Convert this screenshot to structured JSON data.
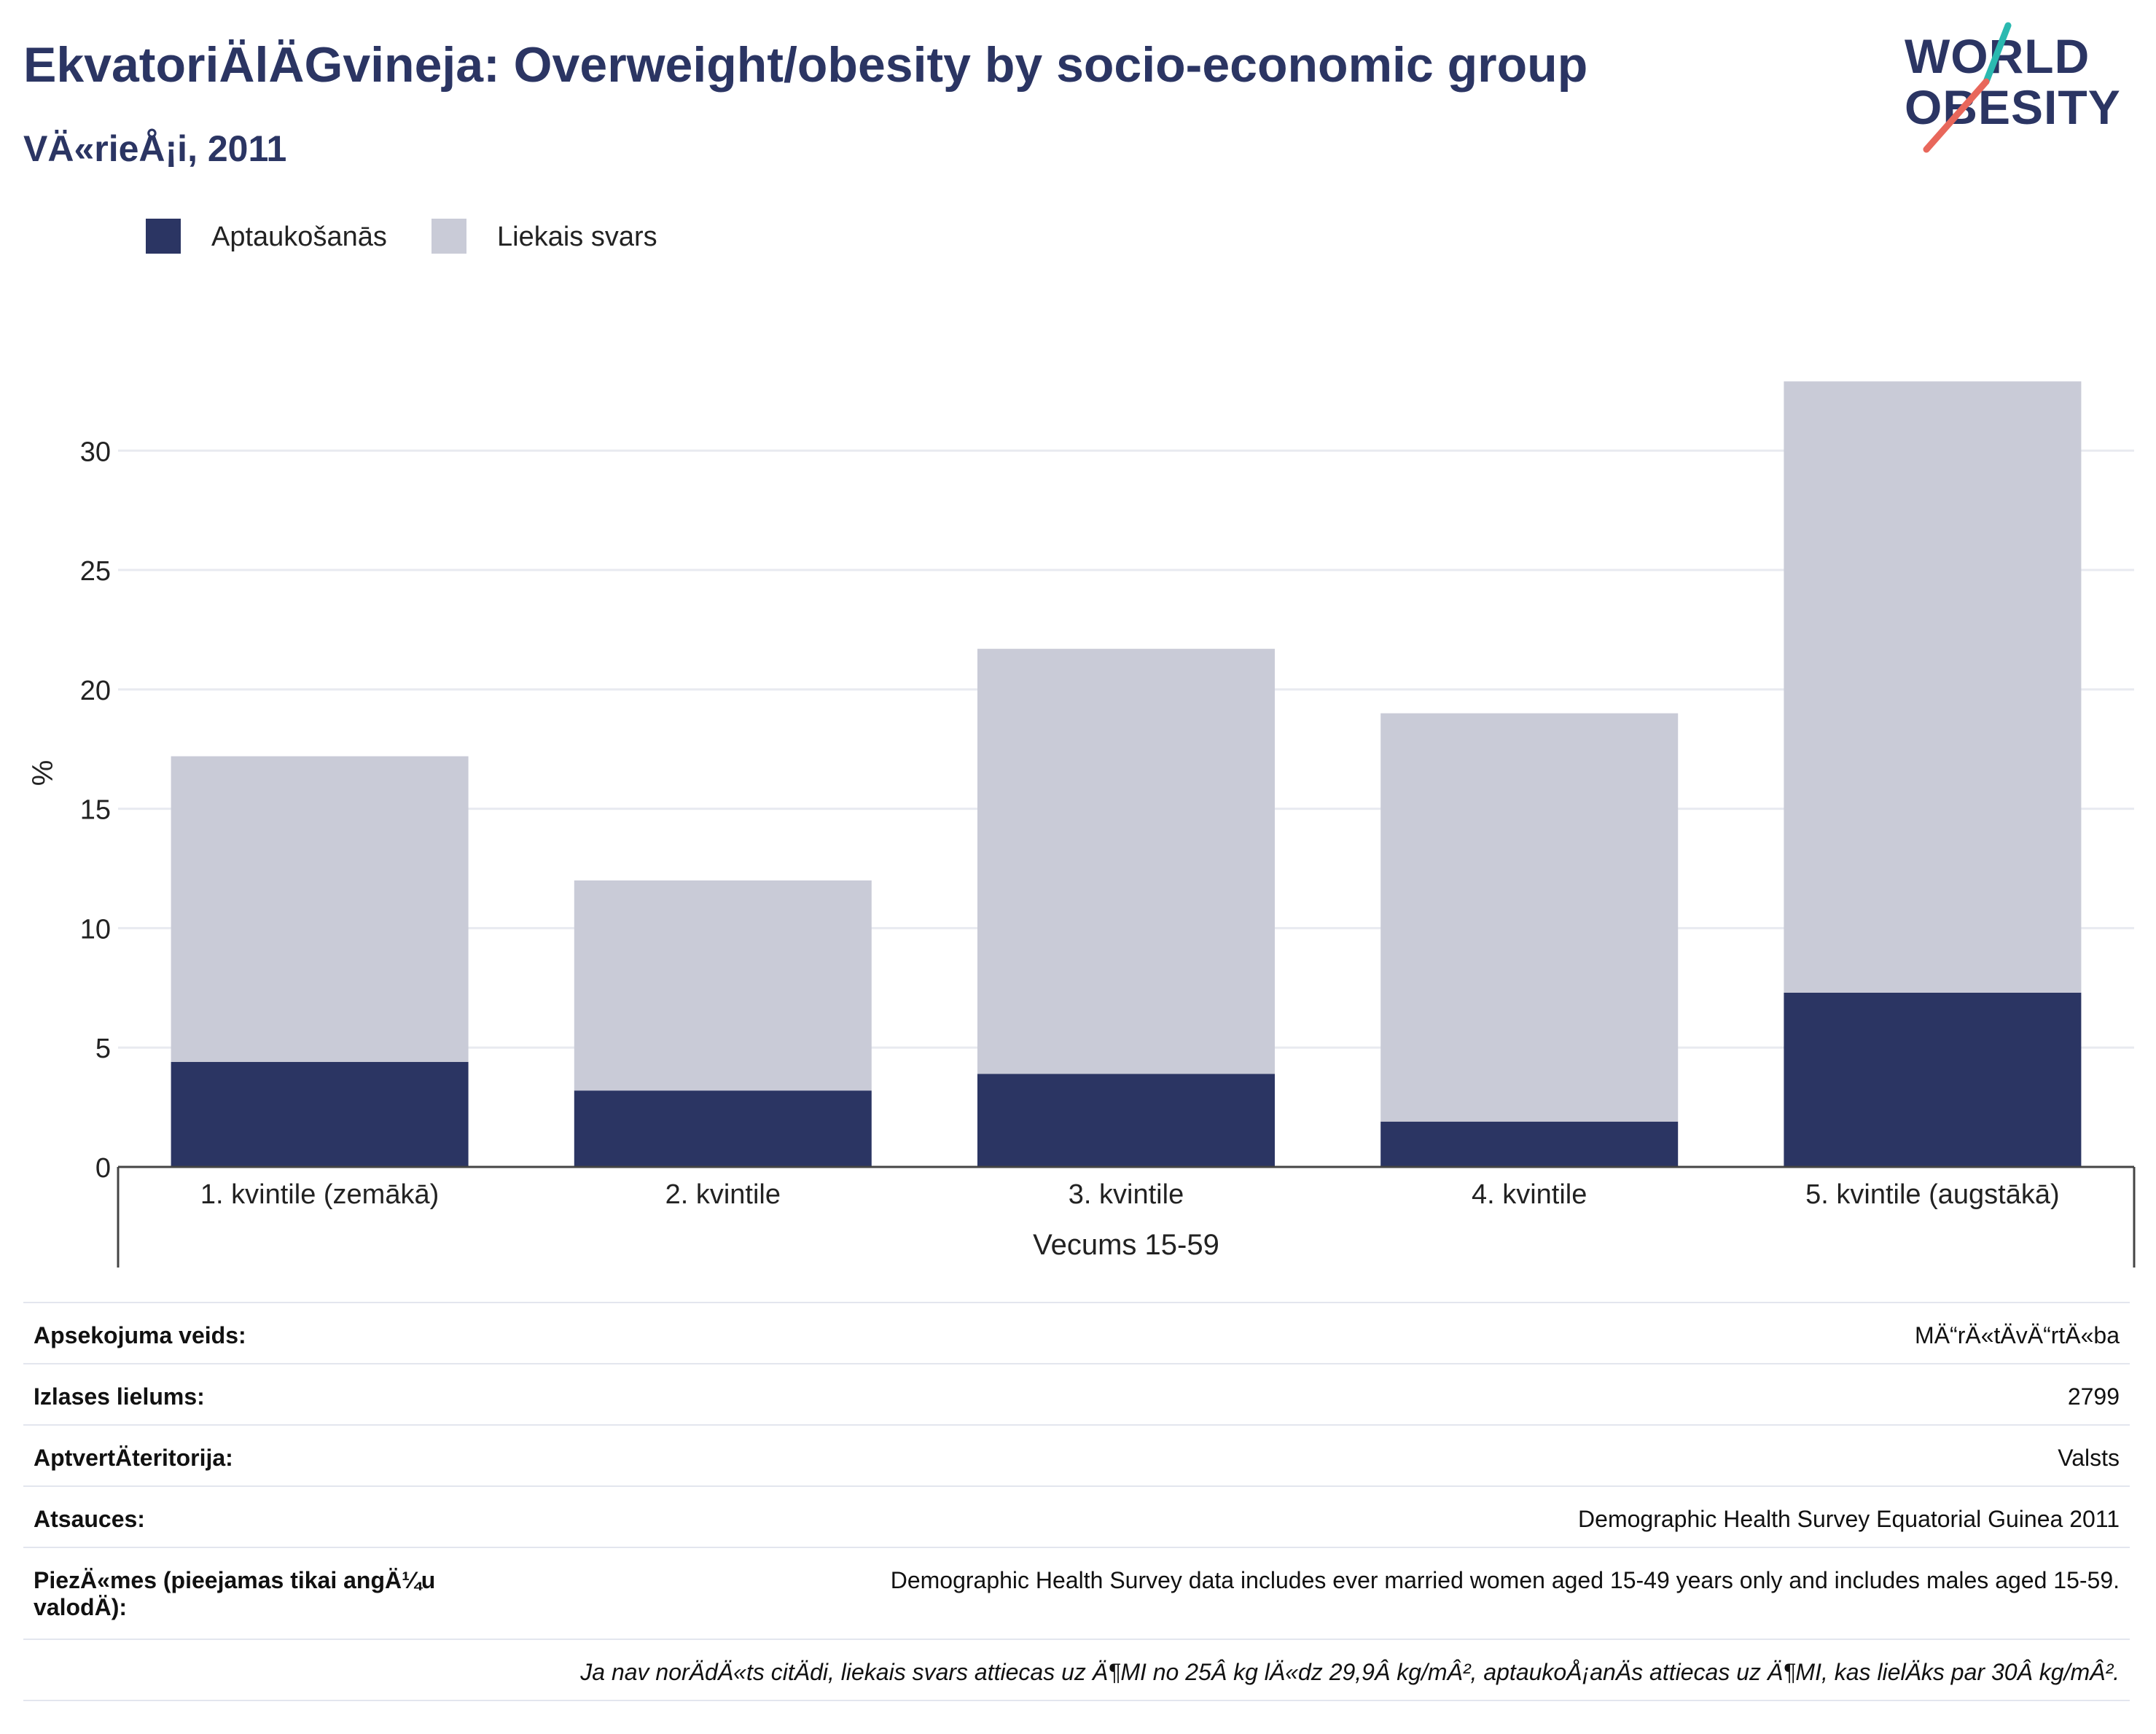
{
  "header": {
    "title": "EkvatoriÄlÄGvineja: Overweight/obesity by socio-economic group",
    "subtitle": "VÄ«rieÅ¡i, 2011"
  },
  "logo": {
    "line1": "WORLD",
    "line2": "OBESITY"
  },
  "legend": [
    {
      "label": "Aptaukošanās",
      "color": "#2b3563"
    },
    {
      "label": "Liekais svars",
      "color": "#c9cbd7"
    }
  ],
  "chart_data": {
    "type": "bar",
    "stacked": true,
    "categories": [
      "1. kvintile (zemākā)",
      "2. kvintile",
      "3. kvintile",
      "4. kvintile",
      "5. kvintile (augstākā)"
    ],
    "series": [
      {
        "name": "Aptaukošanās",
        "color": "#2b3563",
        "values": [
          4.4,
          3.2,
          3.9,
          1.9,
          7.3
        ]
      },
      {
        "name": "Liekais svars",
        "color": "#c9cbd7",
        "values": [
          12.8,
          8.8,
          17.8,
          17.1,
          25.6
        ]
      }
    ],
    "ylabel": "%",
    "xlabel": "Vecums 15-59",
    "ylim": [
      0,
      33
    ],
    "yticks": [
      0,
      5,
      10,
      15,
      20,
      25,
      30
    ],
    "grid": true,
    "legend_position": "top-left"
  },
  "info_table": [
    {
      "label": "Apsekojuma veids:",
      "value": "MÄ“rÄ«tÄvÄ“rtÄ«ba"
    },
    {
      "label": "Izlases lielums:",
      "value": "2799"
    },
    {
      "label": "AptvertÄteritorija:",
      "value": "Valsts"
    },
    {
      "label": "Atsauces:",
      "value": "Demographic Health Survey Equatorial Guinea 2011"
    },
    {
      "label": "PiezÄ«mes (pieejamas tikai angÄ¼u valodÄ):",
      "value": "Demographic Health Survey data includes ever married women aged 15-49 years only and includes males aged 15-59."
    }
  ],
  "footnote": "Ja nav norÄdÄ«ts citÄdi, liekais svars attiecas uz Ä¶MI no 25Â kg lÄ«dz 29,9Â kg/mÂ², aptaukoÅ¡anÄs attiecas uz Ä¶MI, kas lielÄks par 30Â kg/mÂ²."
}
